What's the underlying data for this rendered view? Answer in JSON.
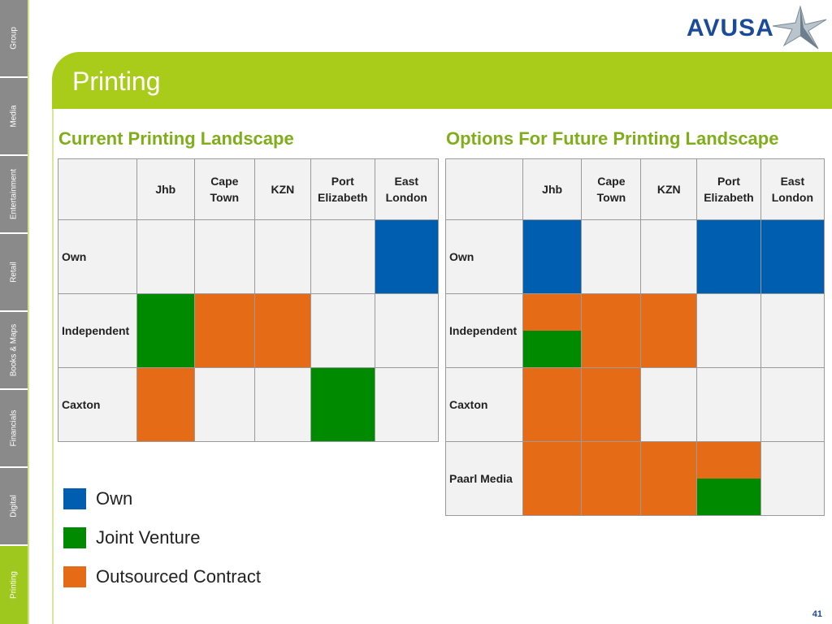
{
  "nav": {
    "items": [
      "Group",
      "Media",
      "Entertainment",
      "Retail",
      "Books & Maps",
      "Financials",
      "Digital",
      "Printing"
    ],
    "active_index": 7
  },
  "logo": {
    "text": "AVUSA"
  },
  "page": {
    "title": "Printing",
    "number": "41"
  },
  "colors": {
    "own": "#005eb0",
    "joint_venture": "#008a00",
    "outsourced": "#e56b16",
    "accent": "#a9cc1b"
  },
  "current": {
    "title": "Current Printing Landscape",
    "columns": [
      "Jhb",
      "Cape\nTown",
      "KZN",
      "Port\nElizabeth",
      "East\nLondon"
    ],
    "rows": [
      {
        "label": "Own",
        "cells": [
          [],
          [],
          [],
          [],
          [
            "own"
          ]
        ]
      },
      {
        "label": "Independent",
        "cells": [
          [
            "jv"
          ],
          [
            "out"
          ],
          [
            "out"
          ],
          [],
          []
        ]
      },
      {
        "label": "Caxton",
        "cells": [
          [
            "out"
          ],
          [],
          [],
          [
            "jv"
          ],
          []
        ]
      }
    ]
  },
  "future": {
    "title": "Options For Future Printing Landscape",
    "columns": [
      "Jhb",
      "Cape\nTown",
      "KZN",
      "Port\nElizabeth",
      "East\nLondon"
    ],
    "rows": [
      {
        "label": "Own",
        "cells": [
          [
            "own"
          ],
          [],
          [],
          [
            "own"
          ],
          [
            "own"
          ]
        ]
      },
      {
        "label": "Independent",
        "cells": [
          [
            "out",
            "jv"
          ],
          [
            "out"
          ],
          [
            "out"
          ],
          [],
          []
        ]
      },
      {
        "label": "Caxton",
        "cells": [
          [
            "out"
          ],
          [
            "out"
          ],
          [],
          [],
          []
        ]
      },
      {
        "label": "Paarl Media",
        "cells": [
          [
            "out"
          ],
          [
            "out"
          ],
          [
            "out"
          ],
          [
            "out",
            "jv"
          ],
          []
        ]
      }
    ]
  },
  "legend": [
    {
      "key": "own",
      "label": "Own"
    },
    {
      "key": "jv",
      "label": "Joint Venture"
    },
    {
      "key": "out",
      "label": "Outsourced Contract"
    }
  ]
}
